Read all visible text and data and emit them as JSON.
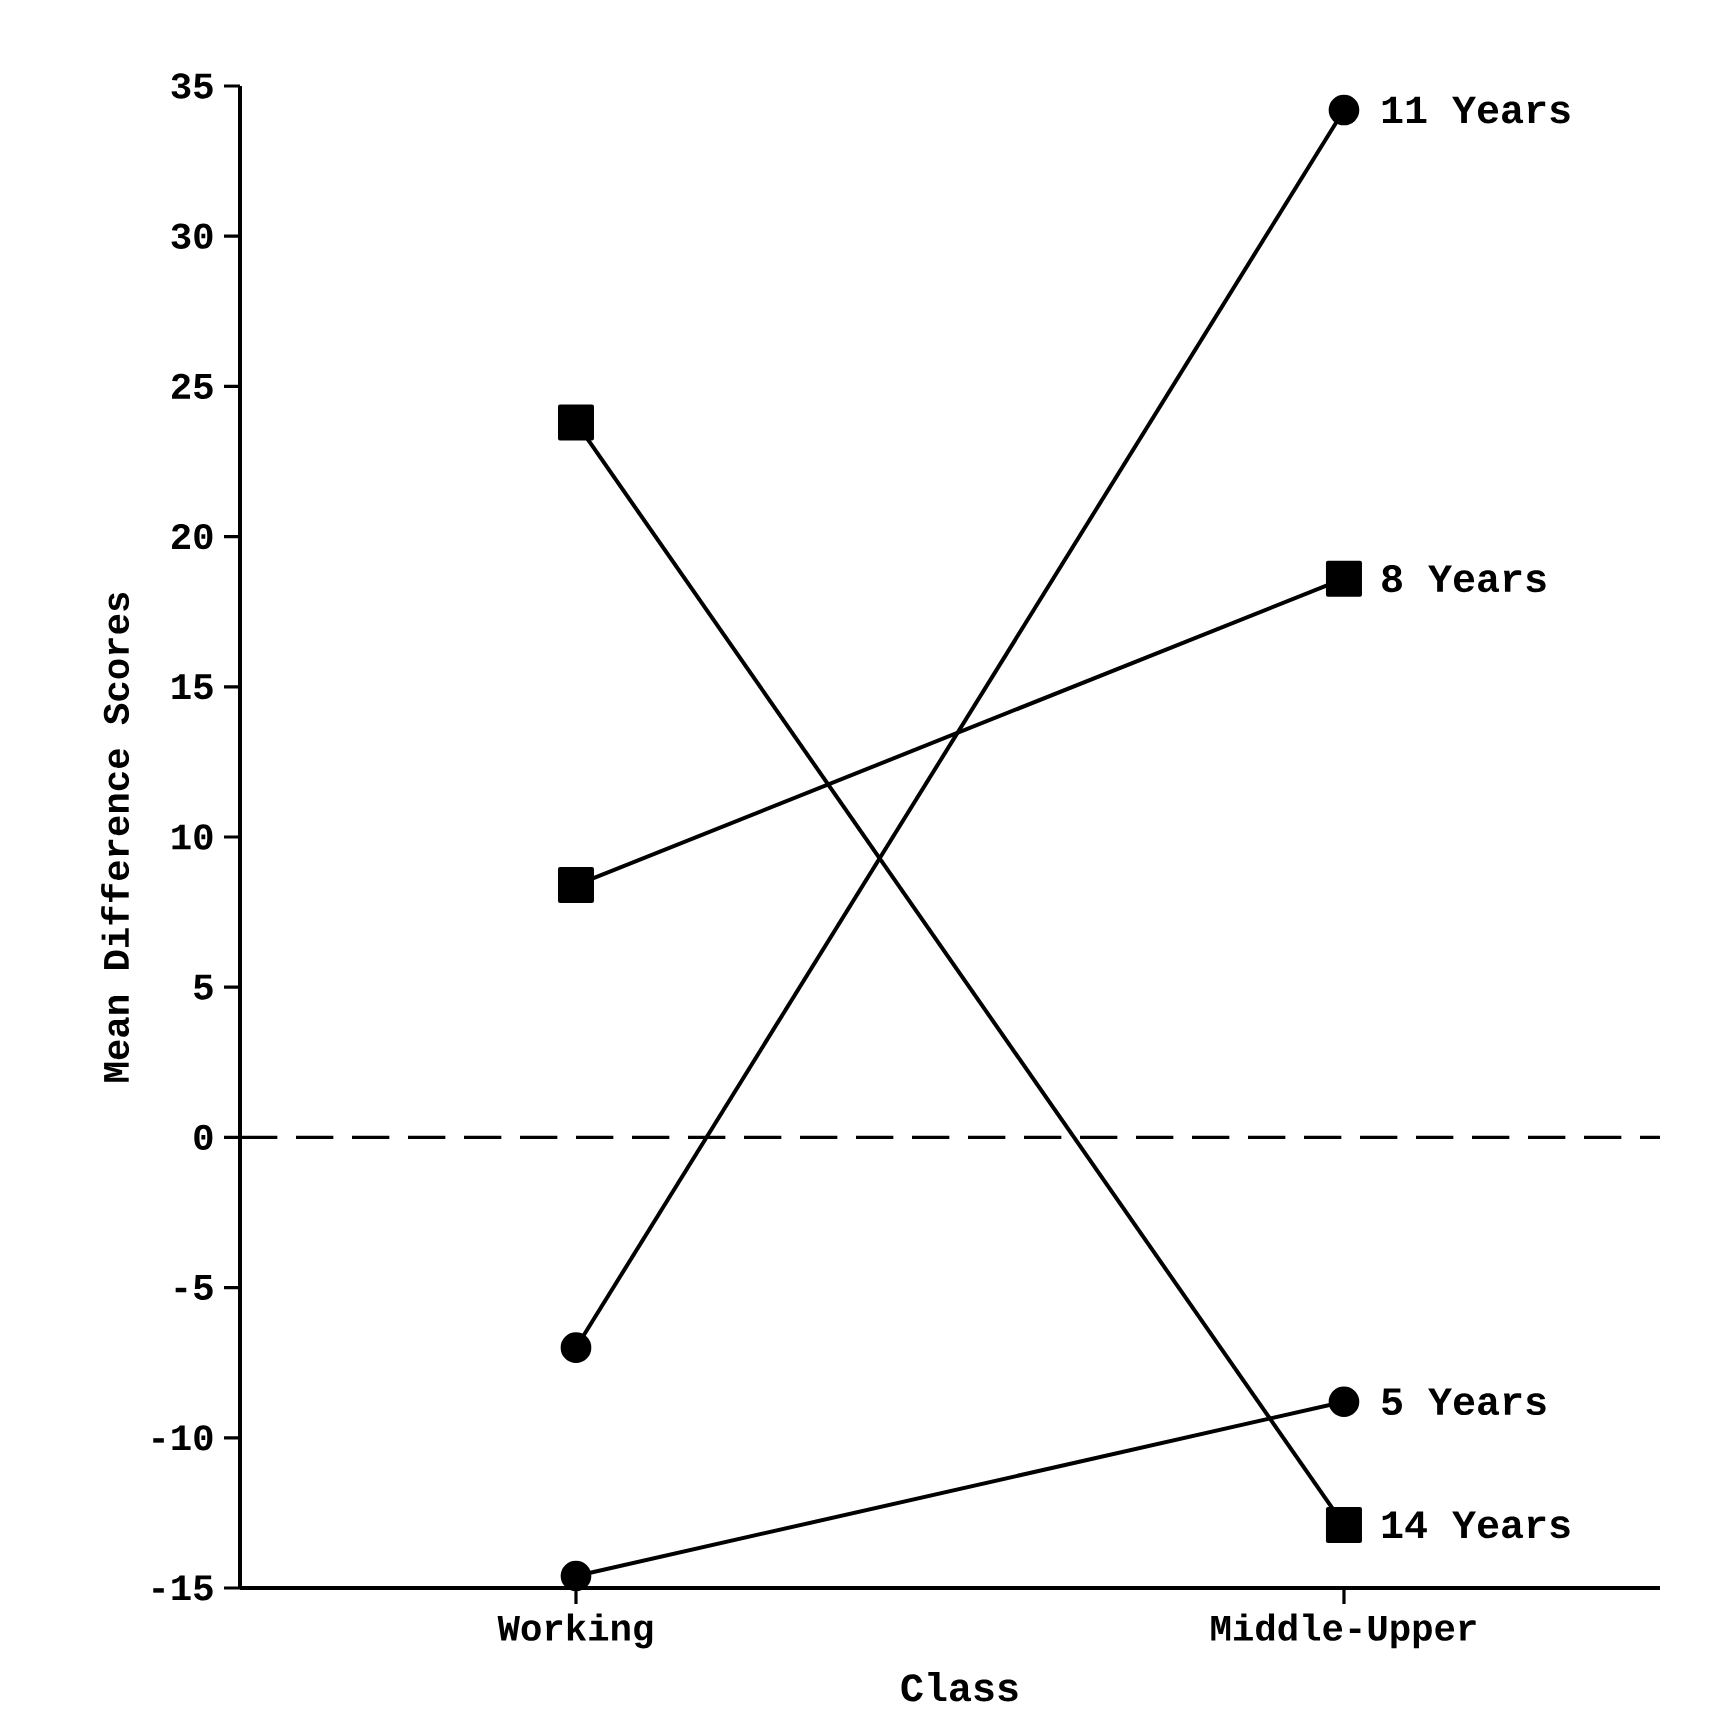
{
  "chart_data": {
    "type": "line",
    "xlabel": "Class",
    "ylabel": "Mean Difference Scores",
    "categories": [
      "Working",
      "Middle-Upper"
    ],
    "series": [
      {
        "name": "11 Years",
        "color": "#000000",
        "marker": "circle",
        "values": [
          -7,
          34.2
        ]
      },
      {
        "name": "8 Years",
        "color": "#000000",
        "marker": "square",
        "values": [
          8.4,
          18.6
        ]
      },
      {
        "name": "5 Years",
        "color": "#000000",
        "marker": "circle",
        "values": [
          -14.6,
          -8.8
        ]
      },
      {
        "name": "14 Years",
        "color": "#000000",
        "marker": "square",
        "values": [
          23.8,
          -12.9
        ]
      }
    ],
    "ylim": [
      -15,
      35
    ],
    "yticks": [
      -15,
      -10,
      -5,
      0,
      5,
      10,
      15,
      20,
      25,
      30,
      35
    ],
    "ref_lines": [
      {
        "axis": "y",
        "value": 0,
        "line_style": "dashed"
      }
    ],
    "legend": false,
    "grid": false
  }
}
